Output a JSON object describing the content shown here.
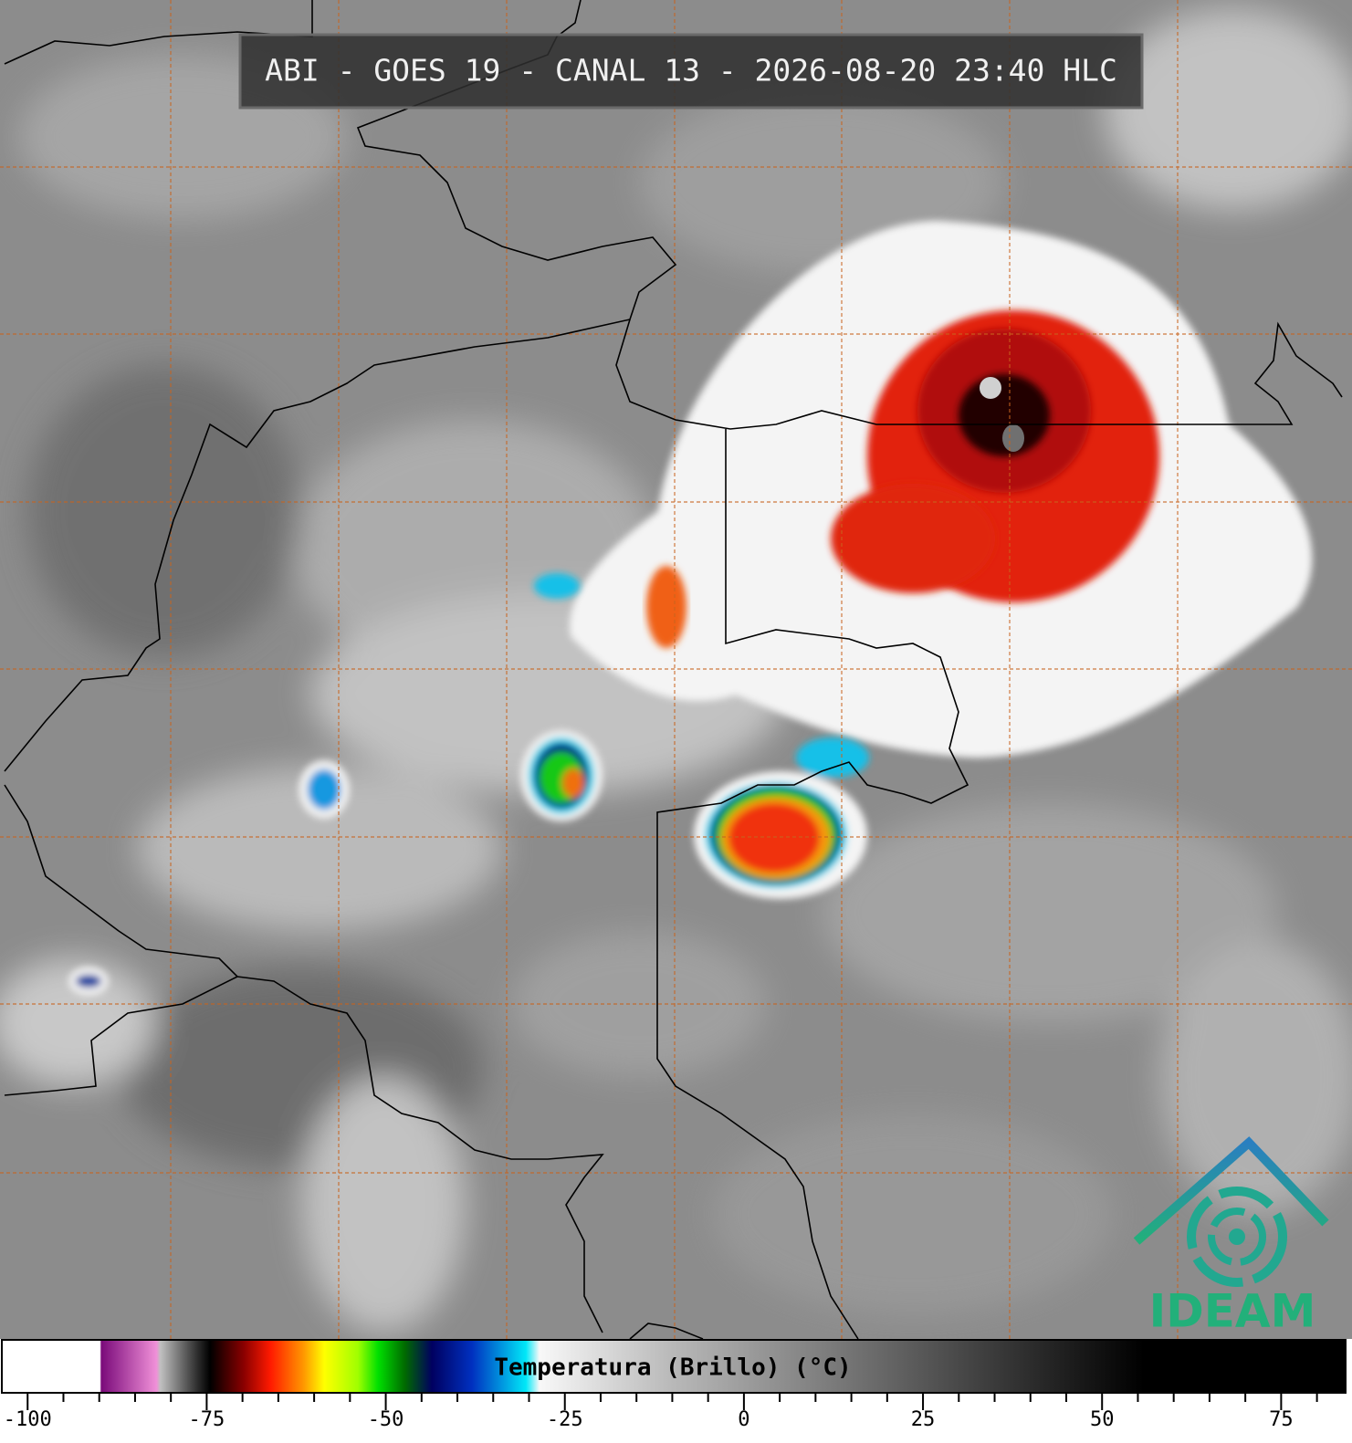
{
  "header": {
    "title": "ABI - GOES 19 - CANAL 13 - 2026-08-20 23:40 HLC"
  },
  "logo": {
    "text": "IDEAM"
  },
  "colorbar": {
    "label": "Temperatura (Brillo) (°C)",
    "xlim": [
      -103.6,
      84
    ],
    "ticks": [
      -100,
      -75,
      -50,
      -25,
      0,
      25,
      50,
      75
    ],
    "minor_ticks": [
      -95,
      -90,
      -85,
      -80,
      -70,
      -65,
      -60,
      -55,
      -45,
      -40,
      -35,
      -30,
      -20,
      -15,
      -10,
      -5,
      5,
      10,
      15,
      20,
      30,
      35,
      40,
      45,
      55,
      60,
      65,
      70,
      80
    ]
  }
}
